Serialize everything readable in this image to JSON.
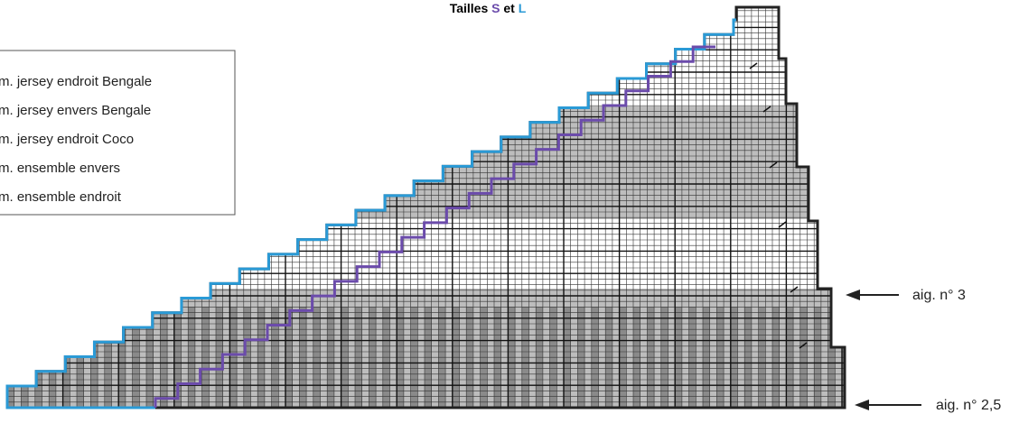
{
  "title": {
    "prefix": "Tailles",
    "size_a": "S",
    "joiner": "et",
    "size_b": "L"
  },
  "legend": {
    "items": [
      "m. jersey endroit Bengale",
      "m. jersey envers Bengale",
      "m. jersey endroit Coco",
      "m. ensemble envers",
      "m. ensemble endroit"
    ]
  },
  "needles": {
    "upper": "aig. n° 3",
    "lower": "aig. n° 2,5"
  }
}
